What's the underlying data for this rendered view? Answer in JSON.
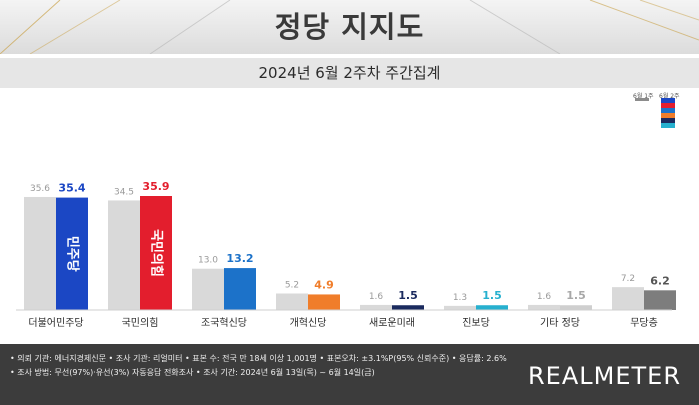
{
  "header": {
    "title": "정당 지지도",
    "subtitle": "2024년 6월 2주차 주간집계"
  },
  "legend": {
    "prev_label": "6월 1주",
    "cur_label": "6월 2주"
  },
  "chart_data": {
    "type": "bar",
    "categories": [
      "더불어민주당",
      "국민의힘",
      "조국혁신당",
      "개혁신당",
      "새로운미래",
      "진보당",
      "기타 정당",
      "무당층"
    ],
    "series": [
      {
        "name": "6월 1주",
        "values": [
          35.6,
          34.5,
          13.0,
          5.2,
          1.6,
          1.3,
          1.6,
          7.2
        ]
      },
      {
        "name": "6월 2주",
        "values": [
          35.4,
          35.9,
          13.2,
          4.9,
          1.5,
          1.5,
          1.5,
          6.2
        ]
      }
    ],
    "value_labels": {
      "prev": [
        "35.6",
        "34.5",
        "13.0",
        "5.2",
        "1.6",
        "1.3",
        "1.6",
        "7.2"
      ],
      "cur": [
        "35.4",
        "35.9",
        "13.2",
        "4.9",
        "1.5",
        "1.5",
        "1.5",
        "6.2"
      ]
    },
    "ylim": [
      0,
      40
    ],
    "colors": {
      "prev": "#d9d9d9",
      "cur": [
        "#1b47c4",
        "#e31e2d",
        "#1c72c9",
        "#f07d2a",
        "#1a2a5e",
        "#26b0cf",
        "#cfcfcf",
        "#7d7d7d"
      ],
      "cur_label": [
        "#1b47c4",
        "#e31e2d",
        "#1c72c9",
        "#f07d2a",
        "#1a2a5e",
        "#26b0cf",
        "#a8a8a8",
        "#555555"
      ]
    },
    "bar_logos": [
      "민주당",
      "국민의힘",
      "",
      "",
      "",
      "",
      "",
      ""
    ]
  },
  "footer": {
    "notes": [
      "• 의뢰 기관: 에너지경제신문  • 조사 기관: 리얼미터  • 표본 수: 전국 만 18세 이상 1,001명  • 표본오차: ±3.1%P(95% 신뢰수준)  • 응답률: 2.6%",
      "• 조사 방법: 무선(97%)·유선(3%) 자동응답 전화조사  • 조사 기간: 2024년 6월 13일(목) ~ 6월 14일(금)"
    ],
    "brand": "REALMETER"
  }
}
